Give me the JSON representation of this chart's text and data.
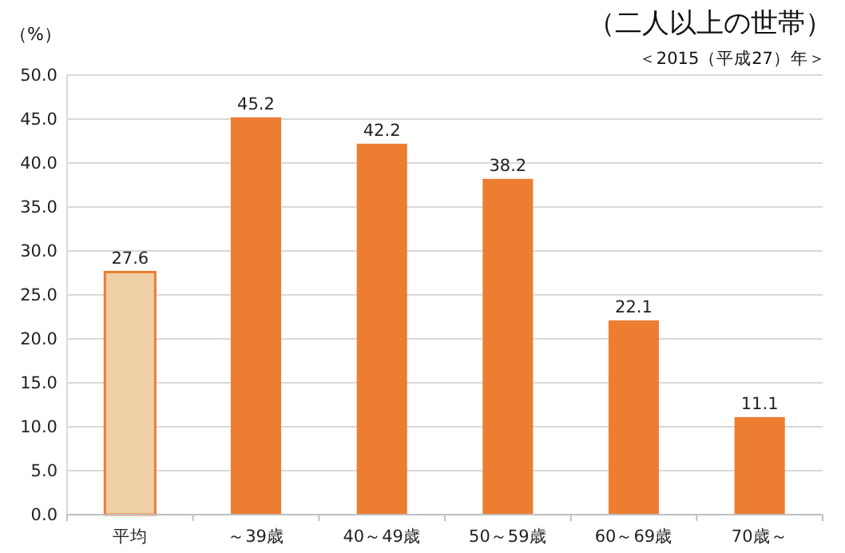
{
  "chart_data": {
    "type": "bar",
    "title": "（二人以上の世帯）",
    "subtitle": "＜2015（平成27）年＞",
    "ylabel": "（%）",
    "categories": [
      "平均",
      "～39歳",
      "40～49歳",
      "50～59歳",
      "60～69歳",
      "70歳～"
    ],
    "values": [
      27.6,
      45.2,
      42.2,
      38.2,
      22.1,
      11.1
    ],
    "colors": [
      "#efcfa6",
      "#ed7d31",
      "#ed7d31",
      "#ed7d31",
      "#ed7d31",
      "#ed7d31"
    ],
    "ylim": [
      0,
      50
    ],
    "yticks": [
      {
        "value": 0,
        "label": "0.0"
      },
      {
        "value": 5,
        "label": "5.0"
      },
      {
        "value": 10,
        "label": "10.0"
      },
      {
        "value": 15,
        "label": "15.0"
      },
      {
        "value": 20,
        "label": "20.0"
      },
      {
        "value": 25,
        "label": "25.0"
      },
      {
        "value": 30,
        "label": "30.0"
      },
      {
        "value": 35,
        "label": "35.0"
      },
      {
        "value": 40,
        "label": "40.0"
      },
      {
        "value": 45,
        "label": "45.0"
      },
      {
        "value": 50,
        "label": "50.0"
      }
    ],
    "grid": "y",
    "data_labels": true
  }
}
